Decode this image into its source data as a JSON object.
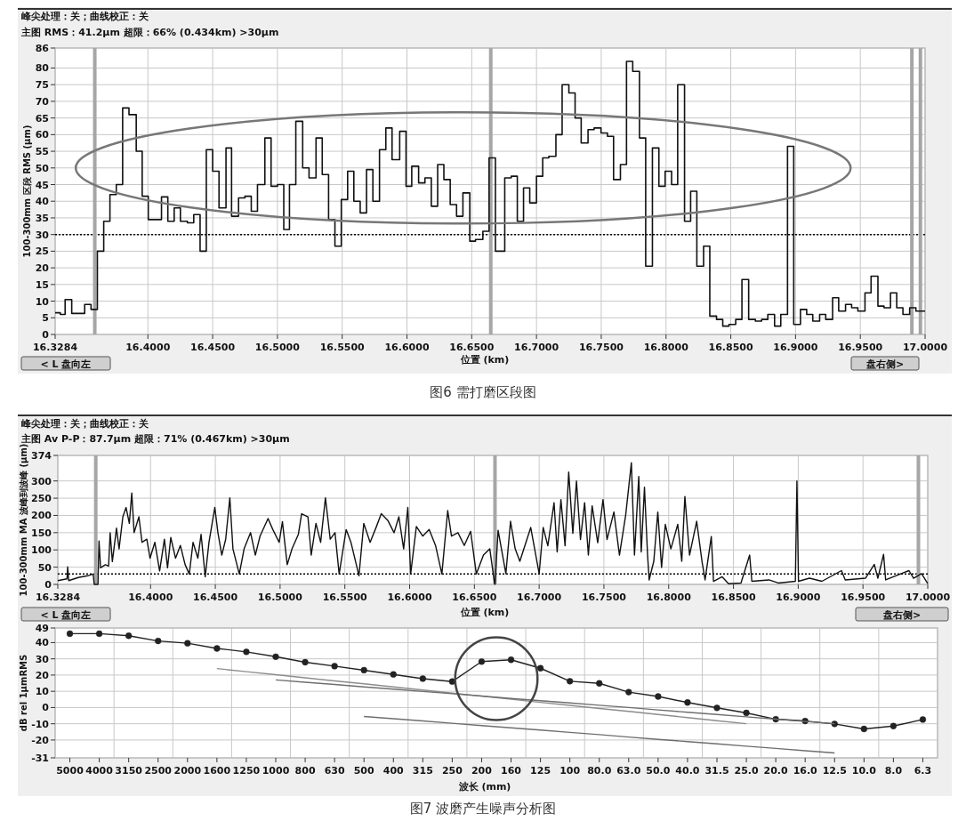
{
  "chart_data": [
    {
      "type": "step",
      "title": "峰尖处理：关；曲线校正：关",
      "subtitle": "主图 RMS：41.2μm 超限：66% (0.434km) >30μm",
      "xlabel": "位置 (km)",
      "ylabel": "100-300mm 区段 RMS (μm)",
      "annotations": [
        "< L 盘向左",
        "盘右侧>",
        "图6 需打磨区段图"
      ],
      "x": [
        16.3284,
        16.3324,
        16.3361,
        16.3412,
        16.3512,
        16.3561,
        16.361,
        16.3659,
        16.3707,
        16.3756,
        16.3805,
        16.3854,
        16.391,
        16.3956,
        16.4003,
        16.4105,
        16.4154,
        16.4203,
        16.4251,
        16.4305,
        16.4354,
        16.4403,
        16.4451,
        16.45,
        16.4549,
        16.4603,
        16.4646,
        16.47,
        16.4749,
        16.4798,
        16.4846,
        16.4903,
        16.4951,
        16.5,
        16.5049,
        16.5093,
        16.5142,
        16.5195,
        16.5244,
        16.5298,
        16.5346,
        16.5395,
        16.5444,
        16.5493,
        16.5542,
        16.559,
        16.5639,
        16.5688,
        16.5737,
        16.5788,
        16.5837,
        16.5885,
        16.5944,
        16.5993,
        16.6037,
        16.609,
        16.6139,
        16.6188,
        16.6237,
        16.6285,
        16.6334,
        16.6383,
        16.6432,
        16.6485,
        16.6529,
        16.6586,
        16.6634,
        16.6683,
        16.6755,
        16.6805,
        16.6852,
        16.69,
        16.6948,
        16.7,
        16.7048,
        16.7095,
        16.715,
        16.7198,
        16.725,
        16.7298,
        16.7345,
        16.7398,
        16.7445,
        16.7498,
        16.7548,
        16.7595,
        16.7648,
        16.7695,
        16.7743,
        16.7795,
        16.7843,
        16.7895,
        16.7945,
        16.7993,
        16.8043,
        16.809,
        16.8143,
        16.819,
        16.8238,
        16.829,
        16.8338,
        16.839,
        16.8438,
        16.8486,
        16.8538,
        16.8586,
        16.8638,
        16.869,
        16.8738,
        16.8786,
        16.8838,
        16.8886,
        16.8938,
        16.8986,
        16.9038,
        16.9086,
        16.9133,
        16.9186,
        16.9233,
        16.9286,
        16.9333,
        16.9386,
        16.9433,
        16.9481,
        16.9536,
        16.9583,
        16.9636,
        16.9683,
        16.9733,
        16.9781,
        16.9829,
        16.9881,
        16.9929,
        17.0
      ],
      "series": [
        {
          "color": "#111111",
          "values": [
            6.5,
            6,
            10.5,
            6.3,
            9,
            7.5,
            25,
            34,
            42,
            45,
            68,
            66,
            55,
            41.5,
            34.5,
            41.3,
            34,
            38,
            34,
            33.5,
            36,
            25,
            55.5,
            49,
            38,
            56,
            35.5,
            41,
            41.5,
            37,
            45,
            59,
            44.5,
            45,
            31.5,
            45,
            64,
            50,
            47,
            59,
            48,
            34.5,
            26.5,
            40.5,
            49,
            40,
            36.5,
            49.5,
            40,
            55.5,
            62,
            52.5,
            61,
            44.5,
            50.5,
            45.5,
            47,
            38.5,
            51,
            46.5,
            39,
            35.5,
            42.5,
            28,
            28.5,
            31,
            53,
            25,
            47,
            47.5,
            34,
            44,
            39.5,
            47.5,
            53,
            53.5,
            60,
            75,
            72.5,
            65,
            57.5,
            61.5,
            62,
            60.5,
            59.5,
            46.5,
            51,
            82,
            79,
            59,
            20.5,
            56,
            44.5,
            49,
            45,
            75,
            34,
            43,
            20.5,
            26.5,
            5.5,
            4.5,
            2.5,
            3,
            4.5,
            16.5,
            4.5,
            4,
            4.5,
            6,
            2.5,
            6,
            56.5,
            3,
            7.5,
            6,
            4,
            6,
            4.5,
            11,
            7,
            9,
            8,
            7,
            12.5,
            17.5,
            8.5,
            8,
            12.5,
            8,
            6,
            8,
            7,
            7
          ]
        }
      ],
      "xlim": [
        16.3284,
        17.0
      ],
      "ylim": [
        0,
        86
      ],
      "xticks": [
        16.3284,
        {
          "value": 16.4,
          "label": "16.4000"
        },
        {
          "value": 16.45,
          "label": "16.4500"
        },
        {
          "value": 16.5,
          "label": "16.5000"
        },
        {
          "value": 16.55,
          "label": "16.5500"
        },
        {
          "value": 16.6,
          "label": "16.6000"
        },
        {
          "value": 16.65,
          "label": "16.6500"
        },
        {
          "value": 16.7,
          "label": "16.7000"
        },
        {
          "value": 16.75,
          "label": "16.7500"
        },
        {
          "value": 16.8,
          "label": "16.8000"
        },
        {
          "value": 16.85,
          "label": "16.8500"
        },
        {
          "value": 16.9,
          "label": "16.9000"
        },
        {
          "value": 16.95,
          "label": "16.9500"
        },
        {
          "value": 17.0,
          "label": "17.0000"
        }
      ],
      "yticks": [
        0,
        5,
        10,
        15,
        20,
        25,
        30,
        35,
        40,
        45,
        50,
        55,
        60,
        65,
        70,
        75,
        80,
        86
      ],
      "grid": true,
      "ref_lines": [
        {
          "axis": "y",
          "value": 30,
          "color": "#000000",
          "line_style": "dotted"
        },
        {
          "axis": "x",
          "value": 16.359,
          "color": "#a6a6a6"
        },
        {
          "axis": "x",
          "value": 16.6647,
          "color": "#a6a6a6"
        },
        {
          "axis": "x",
          "value": 16.9898,
          "color": "#a6a6a6"
        },
        {
          "axis": "x",
          "value": 16.9964,
          "color": "#a6a6a6"
        }
      ]
    },
    {
      "type": "line",
      "title": "峰尖处理：关；曲线校正：关",
      "subtitle": "主图 Av P-P：87.7μm 超限：71% (0.467km) >30μm",
      "xlabel": "位置 (km)",
      "ylabel": "100-300mm MA 波峰到波峰 (μm)",
      "annotations": [
        "< L 盘向左",
        "盘右侧>"
      ],
      "x": [
        16.3284,
        16.3355,
        16.336,
        16.3368,
        16.3442,
        16.3515,
        16.3557,
        16.3565,
        16.3594,
        16.3602,
        16.3614,
        16.3651,
        16.3676,
        16.3688,
        16.3705,
        16.3737,
        16.3757,
        16.3786,
        16.3811,
        16.3836,
        16.3855,
        16.3873,
        16.391,
        16.3934,
        16.3971,
        16.3996,
        16.4033,
        16.407,
        16.4107,
        16.4131,
        16.4156,
        16.4193,
        16.423,
        16.4267,
        16.4299,
        16.4328,
        16.4365,
        16.439,
        16.4422,
        16.4451,
        16.4496,
        16.452,
        16.455,
        16.458,
        16.4612,
        16.4636,
        16.4685,
        16.4722,
        16.4772,
        16.4809,
        16.4845,
        16.4907,
        16.4944,
        16.4993,
        16.5018,
        16.5055,
        16.5092,
        16.5141,
        16.5166,
        16.5215,
        16.524,
        16.5277,
        16.5313,
        16.535,
        16.5387,
        16.5424,
        16.5456,
        16.551,
        16.5547,
        16.5609,
        16.5646,
        16.5695,
        16.5744,
        16.5781,
        16.5831,
        16.588,
        16.5917,
        16.5954,
        16.5986,
        16.6008,
        16.6052,
        16.6101,
        16.6151,
        16.62,
        16.6249,
        16.6294,
        16.6323,
        16.6373,
        16.6422,
        16.6471,
        16.6515,
        16.657,
        16.6619,
        16.6656,
        16.6659,
        16.6683,
        16.6743,
        16.6779,
        16.6815,
        16.6851,
        16.6935,
        16.7,
        16.7031,
        16.7067,
        16.7115,
        16.7139,
        16.7168,
        16.72,
        16.7228,
        16.726,
        16.7288,
        16.7319,
        16.7351,
        16.738,
        16.7409,
        16.7452,
        16.7493,
        16.7524,
        16.7577,
        16.762,
        16.7668,
        16.7712,
        16.7736,
        16.7769,
        16.7788,
        16.7813,
        16.7837,
        16.7849,
        16.7885,
        16.7916,
        16.7945,
        16.7974,
        16.8017,
        16.807,
        16.8101,
        16.8125,
        16.8161,
        16.8216,
        16.8257,
        16.8281,
        16.8329,
        16.8346,
        16.8413,
        16.8462,
        16.8558,
        16.8625,
        16.8642,
        16.8774,
        16.8846,
        16.8978,
        16.899,
        16.9002,
        16.9087,
        16.9183,
        16.9334,
        16.9363,
        16.9519,
        16.9587,
        16.9615,
        16.9659,
        16.9675,
        16.9855,
        16.9891,
        16.9952,
        17.0
      ],
      "series": [
        {
          "color": "#111111",
          "values": [
            11,
            16,
            51,
            11,
            20,
            25,
            30,
            0,
            0,
            126,
            48,
            57,
            53,
            150,
            66,
            163,
            103,
            196,
            223,
            177,
            265,
            150,
            196,
            122,
            131,
            76,
            122,
            39,
            131,
            48,
            136,
            76,
            113,
            57,
            30,
            122,
            76,
            145,
            22,
            122,
            223,
            150,
            85,
            131,
            251,
            103,
            30,
            103,
            150,
            85,
            140,
            191,
            159,
            122,
            182,
            57,
            103,
            145,
            205,
            196,
            85,
            177,
            122,
            251,
            131,
            150,
            30,
            159,
            122,
            25,
            177,
            122,
            168,
            205,
            186,
            150,
            196,
            103,
            223,
            30,
            168,
            140,
            159,
            113,
            30,
            214,
            140,
            150,
            113,
            154,
            30,
            85,
            103,
            2,
            0,
            157,
            31,
            183,
            103,
            67,
            165,
            31,
            165,
            112,
            237,
            94,
            246,
            112,
            326,
            148,
            300,
            130,
            237,
            85,
            228,
            121,
            246,
            130,
            210,
            85,
            201,
            353,
            85,
            313,
            94,
            282,
            85,
            13,
            67,
            210,
            49,
            174,
            103,
            174,
            67,
            255,
            85,
            183,
            67,
            13,
            139,
            9,
            22,
            2,
            4,
            85,
            9,
            13,
            4,
            9,
            300,
            9,
            18,
            9,
            40,
            13,
            18,
            58,
            18,
            87,
            13,
            40,
            18,
            31,
            2
          ]
        }
      ],
      "xlim": [
        16.3284,
        17.0
      ],
      "ylim": [
        0,
        374
      ],
      "xticks": [
        16.3284,
        {
          "value": 16.4,
          "label": "16.4000"
        },
        {
          "value": 16.45,
          "label": "16.4500"
        },
        {
          "value": 16.5,
          "label": "16.5000"
        },
        {
          "value": 16.55,
          "label": "16.5500"
        },
        {
          "value": 16.6,
          "label": "16.6000"
        },
        {
          "value": 16.65,
          "label": "16.6500"
        },
        {
          "value": 16.7,
          "label": "16.7000"
        },
        {
          "value": 16.75,
          "label": "16.7500"
        },
        {
          "value": 16.8,
          "label": "16.8000"
        },
        {
          "value": 16.85,
          "label": "16.8500"
        },
        {
          "value": 16.9,
          "label": "16.9000"
        },
        {
          "value": 16.95,
          "label": "16.9500"
        },
        {
          "value": 17.0,
          "label": "17.0000"
        }
      ],
      "yticks": [
        0,
        50,
        100,
        150,
        200,
        250,
        300,
        374
      ],
      "grid": true,
      "ref_lines": [
        {
          "axis": "y",
          "value": 30,
          "color": "#000000",
          "line_style": "dotted"
        },
        {
          "axis": "x",
          "value": 16.3577,
          "color": "#a6a6a6"
        },
        {
          "axis": "x",
          "value": 16.6659,
          "color": "#a6a6a6"
        },
        {
          "axis": "x",
          "value": 16.9928,
          "color": "#a6a6a6"
        }
      ]
    },
    {
      "type": "line",
      "xlabel": "波长 (mm)",
      "ylabel": "dB rel 1μmRMS",
      "annotations": [
        "图7 波磨产生噪声分析图"
      ],
      "categories": [
        "5000",
        "4000",
        "3150",
        "2500",
        "2000",
        "1600",
        "1250",
        "1000",
        "800",
        "630",
        "500",
        "400",
        "315",
        "250",
        "200",
        "160",
        "125",
        "100",
        "80.0",
        "63.0",
        "50.0",
        "40.0",
        "31.5",
        "25.0",
        "20.0",
        "16.0",
        "12.5",
        "10.0",
        "8.0",
        "6.3"
      ],
      "series": [
        {
          "color": "#222222",
          "marker": "circle",
          "values": [
            45.5,
            45.5,
            44.2,
            41,
            39.6,
            36.4,
            34.3,
            31.3,
            27.9,
            25.5,
            23,
            20.4,
            17.8,
            16,
            28.3,
            29.4,
            24.2,
            16.2,
            14.9,
            9.5,
            6.8,
            3.1,
            -0.2,
            -3.3,
            -7.2,
            -8.3,
            -10.1,
            -13.2,
            -11.4,
            -7.4
          ]
        },
        {
          "type": "line",
          "marker": "none",
          "color": "#8c8c8c",
          "values": [
            null,
            null,
            null,
            null,
            null,
            24,
            22.1,
            20.2,
            18.3,
            16.4,
            14.6,
            12.7,
            10.8,
            8.9,
            7,
            5.1,
            3.2,
            1.3,
            -0.6,
            -2.4,
            -4.3,
            -6.2,
            -8.1,
            -10,
            null,
            null,
            null,
            null,
            null,
            null
          ]
        },
        {
          "type": "line",
          "marker": "none",
          "color": "#6e6e6e",
          "values": [
            null,
            null,
            null,
            null,
            null,
            null,
            null,
            17,
            15.6,
            14.2,
            12.7,
            11.3,
            9.9,
            8.5,
            7.1,
            5.6,
            4.2,
            2.8,
            1.4,
            0,
            -1.5,
            -2.9,
            -4.3,
            -5.7,
            -7.2,
            -8.6,
            -10,
            null,
            null,
            null
          ]
        },
        {
          "type": "line",
          "marker": "none",
          "color": "#6e6e6e",
          "values": [
            null,
            null,
            null,
            null,
            null,
            null,
            null,
            null,
            null,
            null,
            -5.5,
            -6.9,
            -8.3,
            -9.7,
            -11.1,
            -12.5,
            -13.9,
            -15.3,
            -16.7,
            -18.2,
            -19.6,
            -21,
            -22.4,
            -23.8,
            -25.2,
            -26.6,
            -28,
            null,
            null,
            null
          ]
        }
      ],
      "ylim": [
        -31,
        49
      ],
      "yticks": [
        -31,
        -20,
        -10,
        0,
        10,
        20,
        30,
        40,
        49
      ],
      "grid": true
    }
  ]
}
